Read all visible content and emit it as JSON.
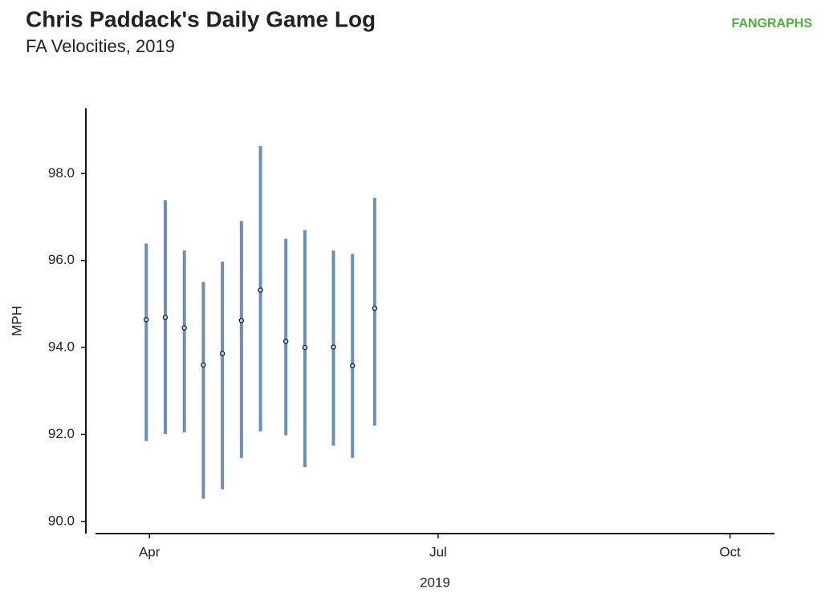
{
  "chart_data": {
    "type": "range",
    "title": "Chris Paddack's Daily Game Log",
    "subtitle": "FA Velocities, 2019",
    "logo": "FANGRAPHS",
    "y_label": "MPH",
    "x_label": "2019",
    "color": "#6a8fb8",
    "x": [
      90,
      96,
      102,
      108,
      114,
      120,
      126,
      134,
      140,
      149,
      155,
      162
    ],
    "values": [
      94.64,
      94.69,
      94.45,
      93.6,
      93.86,
      94.62,
      95.32,
      94.14,
      94.0,
      94.01,
      93.58,
      94.9
    ],
    "low": [
      91.85,
      92.01,
      92.05,
      90.52,
      90.74,
      91.46,
      92.07,
      91.98,
      91.25,
      91.74,
      91.46,
      92.2
    ],
    "high": [
      96.39,
      97.39,
      96.23,
      95.51,
      95.97,
      96.91,
      98.63,
      96.5,
      96.7,
      96.23,
      96.15,
      97.44
    ],
    "xlim": [
      74,
      288
    ],
    "xticks": [
      {
        "value": 91,
        "label": "Apr"
      },
      {
        "value": 182,
        "label": "Jul"
      },
      {
        "value": 274,
        "label": "Oct"
      }
    ],
    "ylim": [
      89.72,
      99.5
    ],
    "yticks": [
      {
        "value": 90,
        "label": "90.0"
      },
      {
        "value": 92,
        "label": "92.0"
      },
      {
        "value": 94,
        "label": "94.0"
      },
      {
        "value": 96,
        "label": "96.0"
      },
      {
        "value": 98,
        "label": "98.0"
      }
    ]
  }
}
